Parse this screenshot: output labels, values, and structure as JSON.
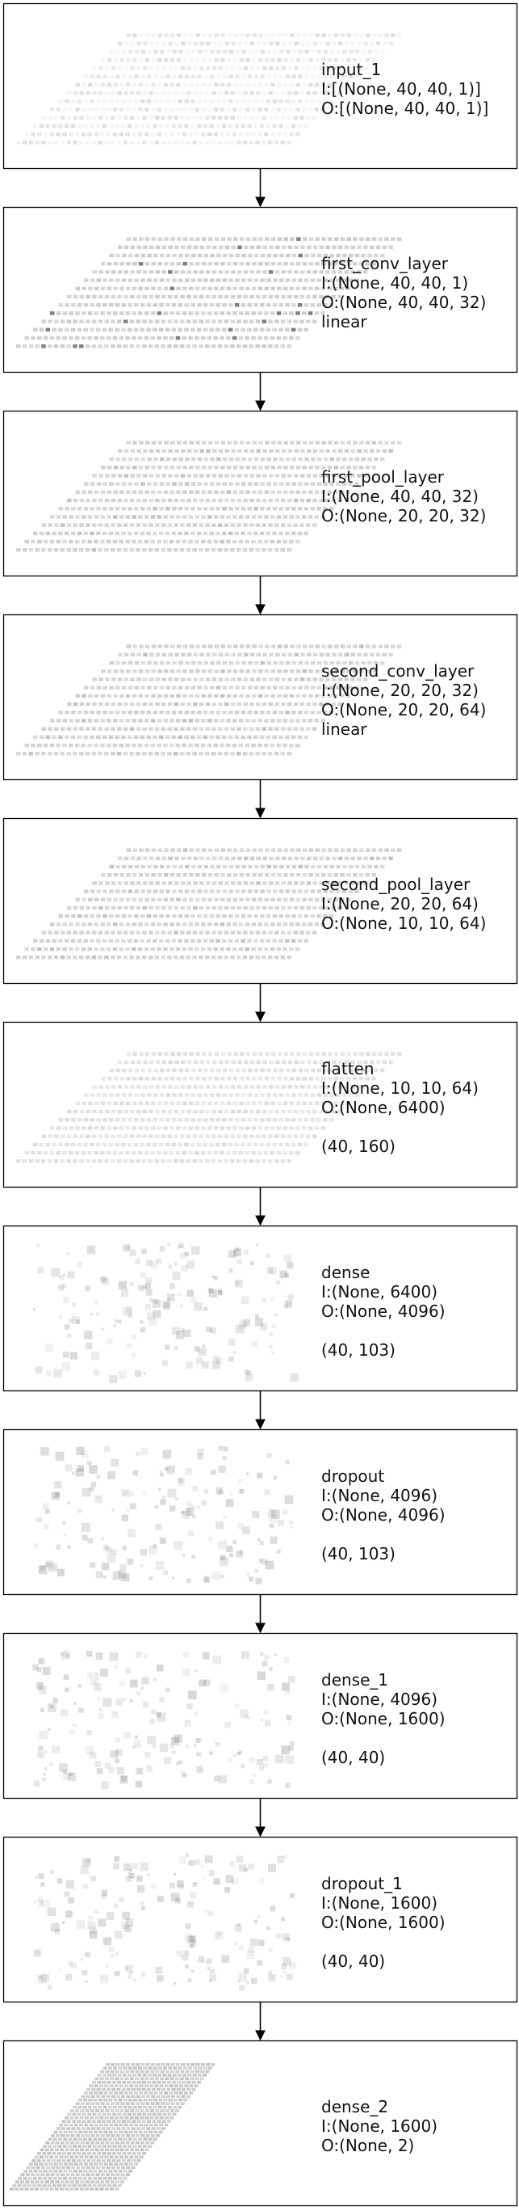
{
  "layers": [
    {
      "name": "input_1",
      "input": "I:[(None, 40, 40, 1)]",
      "output": "O:[(None, 40, 40, 1)]",
      "activation": "",
      "shape": "",
      "viz": "grid",
      "tone": "light"
    },
    {
      "name": "first_conv_layer",
      "input": "I:(None, 40, 40, 1)",
      "output": "O:(None, 40, 40, 32)",
      "activation": "linear",
      "shape": "",
      "viz": "grid",
      "tone": "dark"
    },
    {
      "name": "first_pool_layer",
      "input": "I:(None, 40, 40, 32)",
      "output": "O:(None, 20, 20, 32)",
      "activation": "",
      "shape": "",
      "viz": "grid",
      "tone": "mid"
    },
    {
      "name": "second_conv_layer",
      "input": "I:(None, 20, 20, 32)",
      "output": "O:(None, 20, 20, 64)",
      "activation": "linear",
      "shape": "",
      "viz": "grid",
      "tone": "mid"
    },
    {
      "name": "second_pool_layer",
      "input": "I:(None, 20, 20, 64)",
      "output": "O:(None, 10, 10, 64)",
      "activation": "",
      "shape": "",
      "viz": "grid",
      "tone": "mid"
    },
    {
      "name": "flatten",
      "input": "I:(None, 10, 10, 64)",
      "output": "O:(None, 6400)",
      "activation": "",
      "shape": "(40, 160)",
      "viz": "grid",
      "tone": "light"
    },
    {
      "name": "dense",
      "input": "I:(None, 6400)",
      "output": "O:(None, 4096)",
      "activation": "",
      "shape": "(40, 103)",
      "viz": "scatter",
      "tone": "light"
    },
    {
      "name": "dropout",
      "input": "I:(None, 4096)",
      "output": "O:(None, 4096)",
      "activation": "",
      "shape": "(40, 103)",
      "viz": "scatter",
      "tone": "light"
    },
    {
      "name": "dense_1",
      "input": "I:(None, 4096)",
      "output": "O:(None, 1600)",
      "activation": "",
      "shape": "(40, 40)",
      "viz": "scatter",
      "tone": "light"
    },
    {
      "name": "dropout_1",
      "input": "I:(None, 1600)",
      "output": "O:(None, 1600)",
      "activation": "",
      "shape": "(40, 40)",
      "viz": "scatter",
      "tone": "light"
    },
    {
      "name": "dense_2",
      "input": "I:(None, 1600)",
      "output": "O:(None, 2)",
      "activation": "",
      "shape": "",
      "viz": "block",
      "tone": "mid"
    }
  ]
}
